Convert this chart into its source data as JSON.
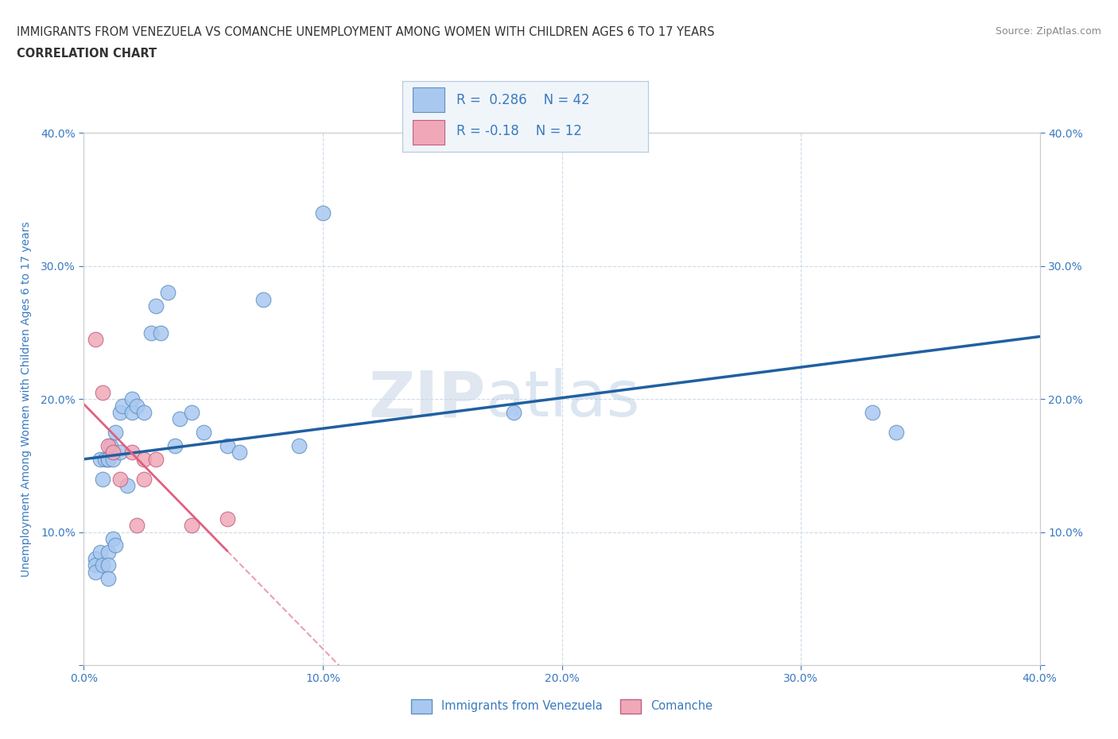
{
  "title_line1": "IMMIGRANTS FROM VENEZUELA VS COMANCHE UNEMPLOYMENT AMONG WOMEN WITH CHILDREN AGES 6 TO 17 YEARS",
  "title_line2": "CORRELATION CHART",
  "source": "Source: ZipAtlas.com",
  "ylabel": "Unemployment Among Women with Children Ages 6 to 17 years",
  "xlim": [
    0,
    0.4
  ],
  "ylim": [
    0,
    0.4
  ],
  "xticks": [
    0.0,
    0.1,
    0.2,
    0.3,
    0.4
  ],
  "yticks": [
    0.0,
    0.1,
    0.2,
    0.3,
    0.4
  ],
  "xtick_labels": [
    "0.0%",
    "10.0%",
    "20.0%",
    "30.0%",
    "40.0%"
  ],
  "ytick_labels": [
    "",
    "10.0%",
    "20.0%",
    "30.0%",
    "40.0%"
  ],
  "right_ytick_labels": [
    "",
    "10.0%",
    "20.0%",
    "30.0%",
    "40.0%"
  ],
  "grid_color": "#c8d8e8",
  "background_color": "#ffffff",
  "watermark_zip": "ZIP",
  "watermark_atlas": "atlas",
  "blue_scatter_x": [
    0.005,
    0.005,
    0.005,
    0.007,
    0.007,
    0.008,
    0.008,
    0.009,
    0.01,
    0.01,
    0.01,
    0.01,
    0.01,
    0.011,
    0.012,
    0.012,
    0.013,
    0.013,
    0.015,
    0.015,
    0.016,
    0.018,
    0.02,
    0.02,
    0.022,
    0.025,
    0.028,
    0.03,
    0.032,
    0.035,
    0.038,
    0.04,
    0.045,
    0.05,
    0.06,
    0.065,
    0.075,
    0.09,
    0.1,
    0.18,
    0.33,
    0.34
  ],
  "blue_scatter_y": [
    0.08,
    0.075,
    0.07,
    0.155,
    0.085,
    0.14,
    0.075,
    0.155,
    0.085,
    0.155,
    0.155,
    0.075,
    0.065,
    0.165,
    0.155,
    0.095,
    0.175,
    0.09,
    0.19,
    0.16,
    0.195,
    0.135,
    0.19,
    0.2,
    0.195,
    0.19,
    0.25,
    0.27,
    0.25,
    0.28,
    0.165,
    0.185,
    0.19,
    0.175,
    0.165,
    0.16,
    0.275,
    0.165,
    0.34,
    0.19,
    0.19,
    0.175
  ],
  "pink_scatter_x": [
    0.005,
    0.008,
    0.01,
    0.012,
    0.015,
    0.02,
    0.022,
    0.025,
    0.025,
    0.03,
    0.045,
    0.06
  ],
  "pink_scatter_y": [
    0.245,
    0.205,
    0.165,
    0.16,
    0.14,
    0.16,
    0.105,
    0.155,
    0.14,
    0.155,
    0.105,
    0.11
  ],
  "blue_R": 0.286,
  "blue_N": 42,
  "pink_R": -0.18,
  "pink_N": 12,
  "blue_line_color": "#2060a0",
  "pink_line_color": "#e06080",
  "blue_scatter_facecolor": "#a8c8f0",
  "blue_scatter_edgecolor": "#6090c0",
  "pink_scatter_facecolor": "#f0a8b8",
  "pink_scatter_edgecolor": "#c06080",
  "title_color": "#333333",
  "axis_color": "#3a7abf",
  "tick_color": "#3a7abf",
  "legend_label1": "Immigrants from Venezuela",
  "legend_label2": "Comanche"
}
